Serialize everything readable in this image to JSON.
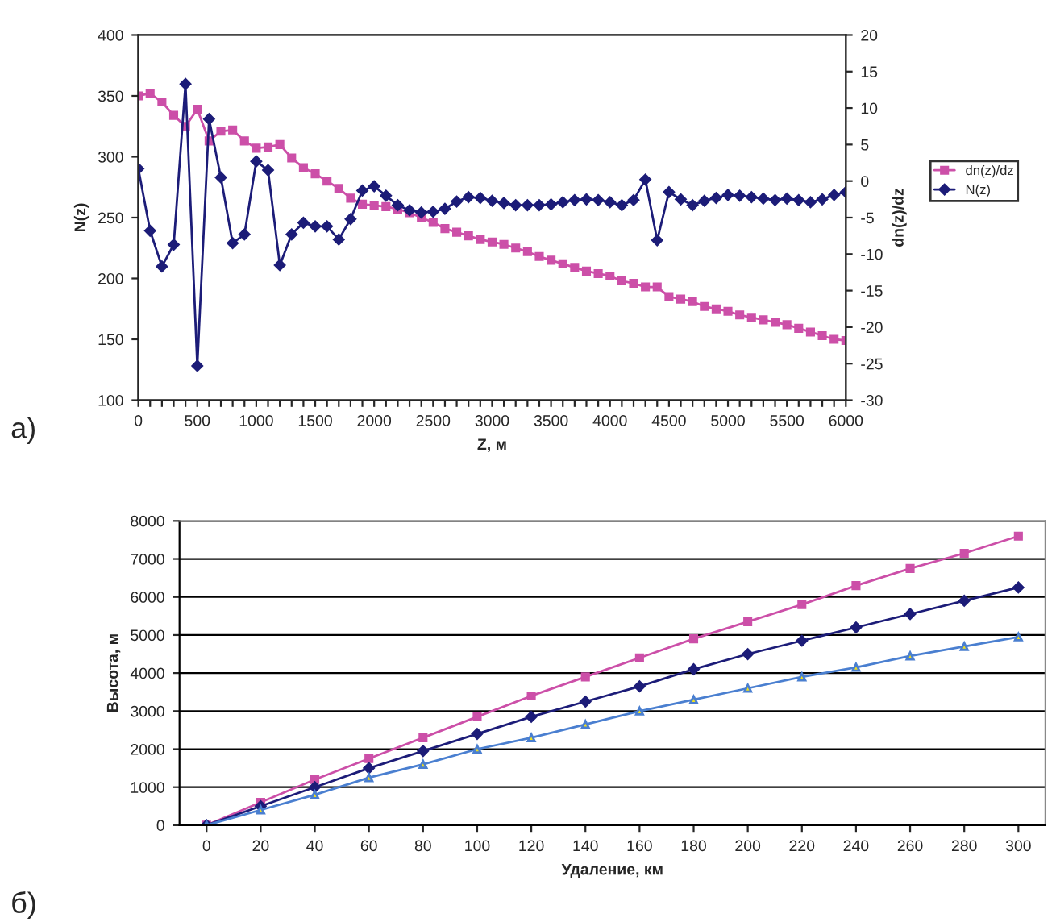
{
  "chart_data": [
    {
      "type": "line",
      "xlabel": "Z, м",
      "ylabel": "N(z)",
      "y2label": "dn(z)/dz",
      "legend": "right",
      "grid": false,
      "line_style": "solid",
      "annotations": [
        "а)"
      ],
      "x": [
        0,
        100,
        200,
        300,
        400,
        500,
        600,
        700,
        800,
        900,
        1000,
        1100,
        1200,
        1300,
        1400,
        1500,
        1600,
        1700,
        1800,
        1900,
        2000,
        2100,
        2200,
        2300,
        2400,
        2500,
        2600,
        2700,
        2800,
        2900,
        3000,
        3100,
        3200,
        3300,
        3400,
        3500,
        3600,
        3700,
        3800,
        3900,
        4000,
        4100,
        4200,
        4300,
        4400,
        4500,
        4600,
        4700,
        4800,
        4900,
        5000,
        5100,
        5200,
        5300,
        5400,
        5500,
        5600,
        5700,
        5800,
        5900,
        6000
      ],
      "xlim": [
        0,
        6000
      ],
      "xticks": [
        0,
        {
          "value": 100,
          "label": null
        },
        {
          "value": 200,
          "label": null
        },
        {
          "value": 300,
          "label": null
        },
        {
          "value": 400,
          "label": null
        },
        500,
        {
          "value": 600,
          "label": null
        },
        {
          "value": 700,
          "label": null
        },
        {
          "value": 800,
          "label": null
        },
        {
          "value": 900,
          "label": null
        },
        1000,
        {
          "value": 1100,
          "label": null
        },
        {
          "value": 1200,
          "label": null
        },
        {
          "value": 1300,
          "label": null
        },
        {
          "value": 1400,
          "label": null
        },
        1500,
        {
          "value": 1600,
          "label": null
        },
        {
          "value": 1700,
          "label": null
        },
        {
          "value": 1800,
          "label": null
        },
        {
          "value": 1900,
          "label": null
        },
        2000,
        {
          "value": 2100,
          "label": null
        },
        {
          "value": 2200,
          "label": null
        },
        {
          "value": 2300,
          "label": null
        },
        {
          "value": 2400,
          "label": null
        },
        2500,
        {
          "value": 2600,
          "label": null
        },
        {
          "value": 2700,
          "label": null
        },
        {
          "value": 2800,
          "label": null
        },
        {
          "value": 2900,
          "label": null
        },
        3000,
        {
          "value": 3100,
          "label": null
        },
        {
          "value": 3200,
          "label": null
        },
        {
          "value": 3300,
          "label": null
        },
        {
          "value": 3400,
          "label": null
        },
        3500,
        {
          "value": 3600,
          "label": null
        },
        {
          "value": 3700,
          "label": null
        },
        {
          "value": 3800,
          "label": null
        },
        {
          "value": 3900,
          "label": null
        },
        4000,
        {
          "value": 4100,
          "label": null
        },
        {
          "value": 4200,
          "label": null
        },
        {
          "value": 4300,
          "label": null
        },
        {
          "value": 4400,
          "label": null
        },
        4500,
        {
          "value": 4600,
          "label": null
        },
        {
          "value": 4700,
          "label": null
        },
        {
          "value": 4800,
          "label": null
        },
        {
          "value": 4900,
          "label": null
        },
        5000,
        {
          "value": 5100,
          "label": null
        },
        {
          "value": 5200,
          "label": null
        },
        {
          "value": 5300,
          "label": null
        },
        {
          "value": 5400,
          "label": null
        },
        5500,
        {
          "value": 5600,
          "label": null
        },
        {
          "value": 5700,
          "label": null
        },
        {
          "value": 5800,
          "label": null
        },
        {
          "value": 5900,
          "label": null
        },
        6000
      ],
      "ylim": [
        100,
        400
      ],
      "yticks": [
        100,
        150,
        200,
        250,
        300,
        350,
        400
      ],
      "y2lim": [
        -30,
        20
      ],
      "y2ticks": [
        -30,
        -25,
        -20,
        -15,
        -10,
        -5,
        0,
        5,
        10,
        15,
        20
      ],
      "series": [
        {
          "name": "dn(z)/dz",
          "color": "#cc4fa8",
          "marker": "square",
          "values": [
            350,
            352,
            345,
            334,
            325,
            339,
            313,
            321,
            322,
            313,
            307,
            308,
            310,
            299,
            291,
            286,
            280,
            274,
            266,
            261,
            260,
            259,
            257,
            254,
            250,
            246,
            241,
            238,
            235,
            232,
            230,
            228,
            225,
            222,
            218,
            215,
            212,
            209,
            206,
            204,
            202,
            198,
            196,
            193,
            193,
            185,
            183,
            181,
            177,
            175,
            173,
            170,
            168,
            166,
            164,
            162,
            159,
            156,
            153,
            150,
            149
          ]
        },
        {
          "name": "N(z)",
          "color": "#1c1c78",
          "marker": "diamond",
          "axis": "y2",
          "values": [
            1.7,
            -6.8,
            -11.7,
            -8.7,
            13.3,
            -25.3,
            8.5,
            0.5,
            -8.5,
            -7.3,
            2.7,
            1.5,
            -11.5,
            -7.3,
            -5.7,
            -6.2,
            -6.2,
            -8,
            -5.2,
            -1.3,
            -0.7,
            -2,
            -3.3,
            -4,
            -4.3,
            -4.2,
            -3.8,
            -2.8,
            -2.2,
            -2.3,
            -2.7,
            -3,
            -3.3,
            -3.3,
            -3.3,
            -3.2,
            -2.9,
            -2.6,
            -2.5,
            -2.6,
            -2.9,
            -3.3,
            -2.6,
            0.2,
            -8.1,
            -1.5,
            -2.5,
            -3.3,
            -2.7,
            -2.3,
            -1.9,
            -2,
            -2.2,
            -2.4,
            -2.6,
            -2.4,
            -2.6,
            -2.9,
            -2.5,
            -1.9,
            -1.5
          ]
        }
      ]
    },
    {
      "type": "line",
      "xlabel": "Удаление, км",
      "ylabel": "Высота, м",
      "legend": false,
      "grid": "y",
      "line_style": "solid",
      "annotations": [
        "б)"
      ],
      "x": [
        0,
        20,
        40,
        60,
        80,
        100,
        120,
        140,
        160,
        180,
        200,
        220,
        240,
        260,
        280,
        300
      ],
      "xlim": [
        -10,
        310
      ],
      "xticks": [
        0,
        20,
        40,
        60,
        80,
        100,
        120,
        140,
        160,
        180,
        200,
        220,
        240,
        260,
        280,
        300
      ],
      "ylim": [
        0,
        8000
      ],
      "yticks": [
        0,
        1000,
        2000,
        3000,
        4000,
        5000,
        6000,
        7000,
        8000
      ],
      "series": [
        {
          "color": "#cc4fa8",
          "marker": "square",
          "values": [
            0,
            600,
            1200,
            1750,
            2300,
            2850,
            3400,
            3900,
            4400,
            4900,
            5350,
            5800,
            6300,
            6750,
            7150,
            7600
          ]
        },
        {
          "color": "#1c1c78",
          "marker": "diamond",
          "values": [
            0,
            500,
            1000,
            1500,
            1950,
            2400,
            2850,
            3250,
            3650,
            4100,
            4500,
            4850,
            5200,
            5550,
            5900,
            6250
          ]
        },
        {
          "color": "#4a7fd0",
          "marker": "triangle",
          "values": [
            0,
            400,
            800,
            1250,
            1600,
            2000,
            2300,
            2650,
            3000,
            3300,
            3600,
            3900,
            4150,
            4450,
            4700,
            4950
          ]
        }
      ]
    }
  ]
}
